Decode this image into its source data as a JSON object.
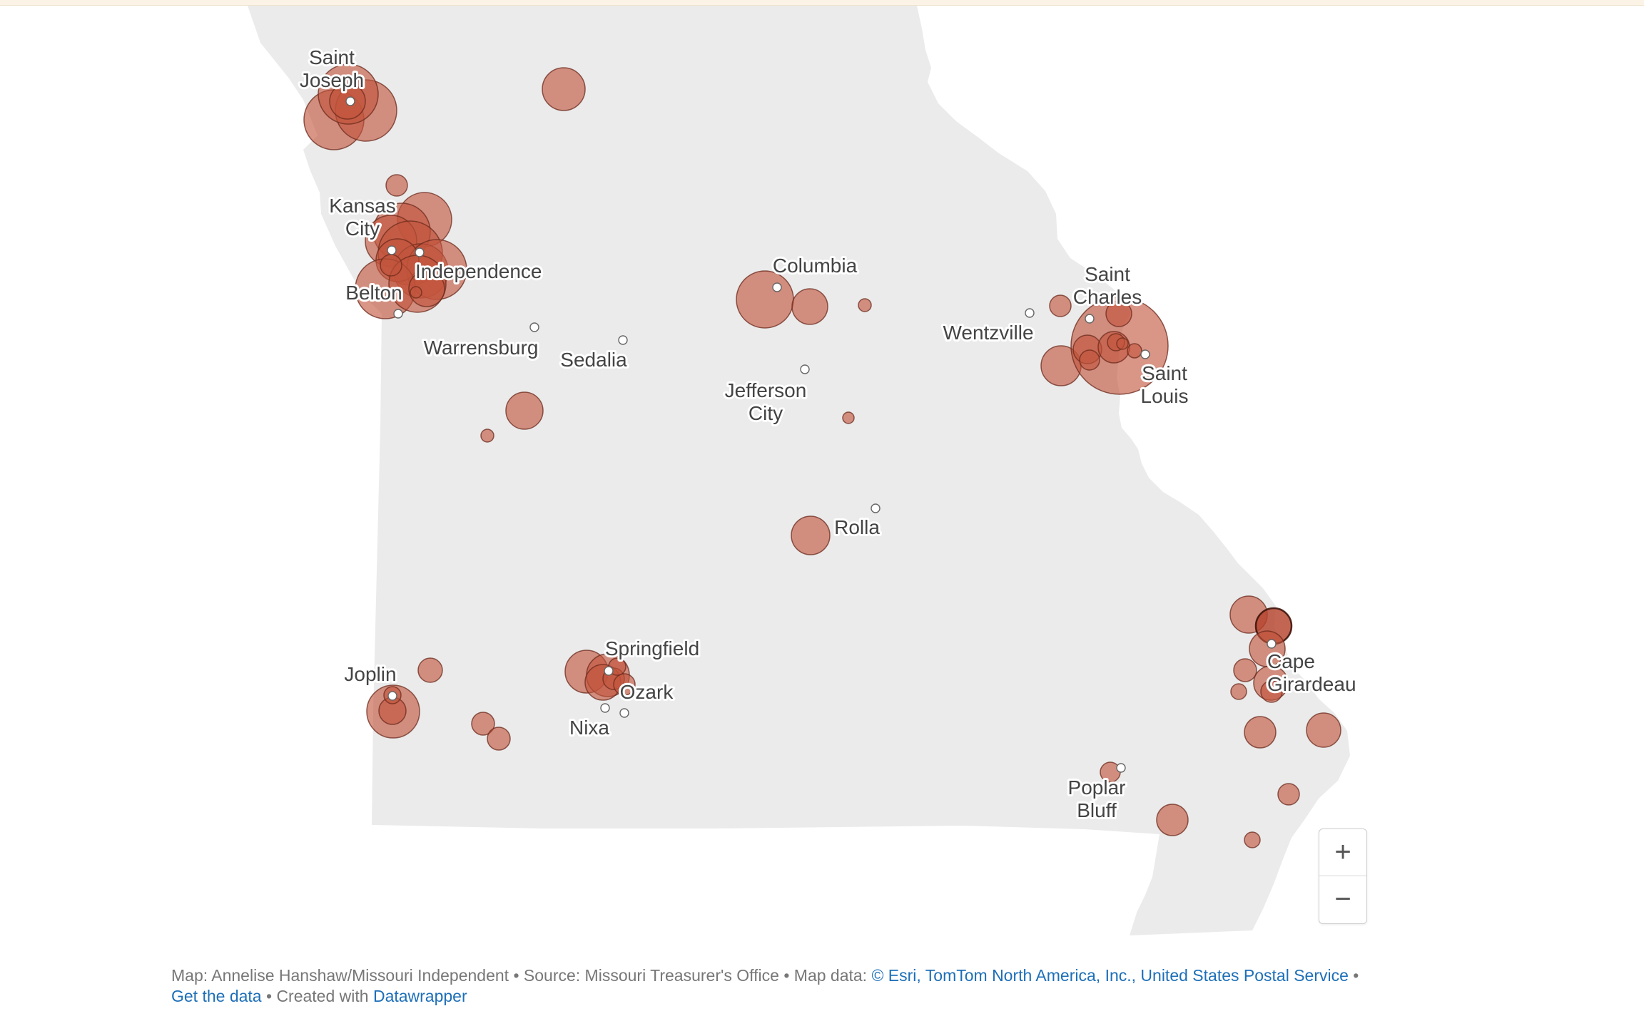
{
  "map": {
    "colors": {
      "land": "#ebebeb",
      "bubble": "#c2543b",
      "label": "#444444",
      "link": "#1d6fb8"
    },
    "cities": [
      {
        "name": "Saint Joseph",
        "lines": [
          "Saint",
          "Joseph"
        ]
      },
      {
        "name": "Kansas City",
        "lines": [
          "Kansas",
          "City"
        ]
      },
      {
        "name": "Independence",
        "lines": [
          "Independence"
        ]
      },
      {
        "name": "Belton",
        "lines": [
          "Belton"
        ]
      },
      {
        "name": "Warrensburg",
        "lines": [
          "Warrensburg"
        ]
      },
      {
        "name": "Sedalia",
        "lines": [
          "Sedalia"
        ]
      },
      {
        "name": "Columbia",
        "lines": [
          "Columbia"
        ]
      },
      {
        "name": "Jefferson City",
        "lines": [
          "Jefferson",
          "City"
        ]
      },
      {
        "name": "Wentzville",
        "lines": [
          "Wentzville"
        ]
      },
      {
        "name": "Saint Charles",
        "lines": [
          "Saint",
          "Charles"
        ]
      },
      {
        "name": "Saint Louis",
        "lines": [
          "Saint",
          "Louis"
        ]
      },
      {
        "name": "Rolla",
        "lines": [
          "Rolla"
        ]
      },
      {
        "name": "Joplin",
        "lines": [
          "Joplin"
        ]
      },
      {
        "name": "Springfield",
        "lines": [
          "Springfield"
        ]
      },
      {
        "name": "Ozark",
        "lines": [
          "Ozark"
        ]
      },
      {
        "name": "Nixa",
        "lines": [
          "Nixa"
        ]
      },
      {
        "name": "Cape Girardeau",
        "lines": [
          "Cape",
          "Girardeau"
        ]
      },
      {
        "name": "Poplar Bluff",
        "lines": [
          "Poplar",
          "Bluff"
        ]
      }
    ]
  },
  "zoom": {
    "plus_icon": "+",
    "minus_icon": "−"
  },
  "footer": {
    "credit": "Map: Annelise Hanshaw/Missouri Independent",
    "sep1": " • ",
    "source": "Source: Missouri Treasurer's Office",
    "sep2": " • ",
    "map_data_label": "Map data: ",
    "map_data_link": "© Esri, TomTom North America, Inc., United States Postal Service",
    "sep3": " • ",
    "get_data": "Get the data",
    "sep4": " • ",
    "created_with": "Created with ",
    "datawrapper": "Datawrapper"
  }
}
